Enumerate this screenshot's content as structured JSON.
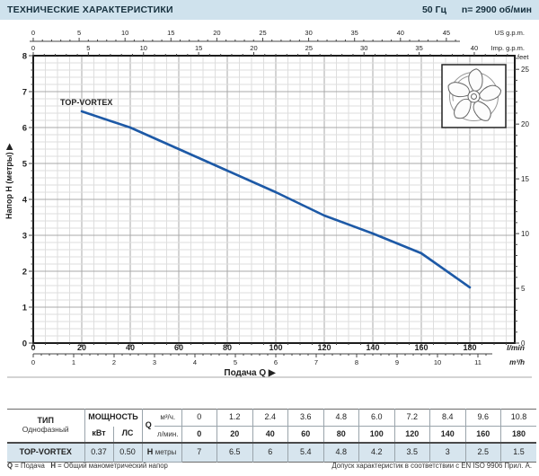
{
  "header": {
    "title": "ТЕХНИЧЕСКИЕ ХАРАКТЕРИСТИКИ",
    "frequency": "50 Гц",
    "speed": "n= 2900  об/мин"
  },
  "chart_data": {
    "type": "line",
    "title": "TOP-VORTEX",
    "xlabel": "Подача Q",
    "ylabel": "Напор H (метры)",
    "curve_color": "#1d59a6",
    "series": [
      {
        "name": "TOP-VORTEX",
        "x_lmin": [
          20,
          40,
          60,
          80,
          100,
          120,
          140,
          160,
          180
        ],
        "y_m": [
          6.45,
          6.0,
          5.4,
          4.8,
          4.2,
          3.55,
          3.05,
          2.5,
          1.55
        ]
      }
    ],
    "axes": {
      "lmin": {
        "unit": "l/min",
        "labels": [
          0,
          20,
          40,
          60,
          80,
          100,
          120,
          140,
          160,
          180
        ],
        "range": [
          0,
          198
        ]
      },
      "m3h": {
        "unit": "m³/h",
        "labels": [
          0,
          1,
          2,
          3,
          4,
          5,
          6,
          7,
          8,
          9,
          10,
          11
        ]
      },
      "us_gpm": {
        "unit": "US g.p.m.",
        "labels": [
          0,
          5,
          10,
          15,
          20,
          25,
          30,
          35,
          40,
          45
        ]
      },
      "imp_gpm": {
        "unit": "Imp. g.p.m.",
        "labels": [
          0,
          5,
          10,
          15,
          20,
          25,
          30,
          35,
          40
        ]
      },
      "meters": {
        "title": "Напор H (метры)",
        "labels": [
          8,
          7,
          6,
          5,
          4,
          3,
          2,
          1,
          0
        ],
        "range": [
          0,
          8
        ]
      },
      "feet": {
        "unit": "feet",
        "labels": [
          25,
          20,
          15,
          10,
          5,
          0
        ]
      }
    },
    "grid": {
      "minor_lmin": 5,
      "major_lmin": 20,
      "minor_m": 0.2,
      "major_m": 1
    }
  },
  "table": {
    "type_header": "ТИП",
    "type_sub": "Однофазный",
    "power_header": "МОЩНОСТЬ",
    "power_units": [
      "кВт",
      "ЛС"
    ],
    "q_label": "Q",
    "q_unit_m3h": "м³/ч.",
    "q_unit_lmin": "л/мин.",
    "h_label": "H",
    "h_unit": "метры",
    "flow_m3h": [
      "0",
      "1.2",
      "2.4",
      "3.6",
      "4.8",
      "6.0",
      "7.2",
      "8.4",
      "9.6",
      "10.8"
    ],
    "flow_lmin": [
      "0",
      "20",
      "40",
      "60",
      "80",
      "100",
      "120",
      "140",
      "160",
      "180"
    ],
    "rows": [
      {
        "type": "TOP-VORTEX",
        "kw": "0.37",
        "hp": "0.50",
        "head_m": [
          "7",
          "6.5",
          "6",
          "5.4",
          "4.8",
          "4.2",
          "3.5",
          "3",
          "2.5",
          "1.5"
        ]
      }
    ]
  },
  "footer": {
    "q_key": "Q",
    "q_def": "= Подача",
    "h_key": "H",
    "h_def": "= Общий манометрический напор",
    "tolerance": "Допуск характеристик в соответствии с EN ISO 9906 Прил. А."
  }
}
